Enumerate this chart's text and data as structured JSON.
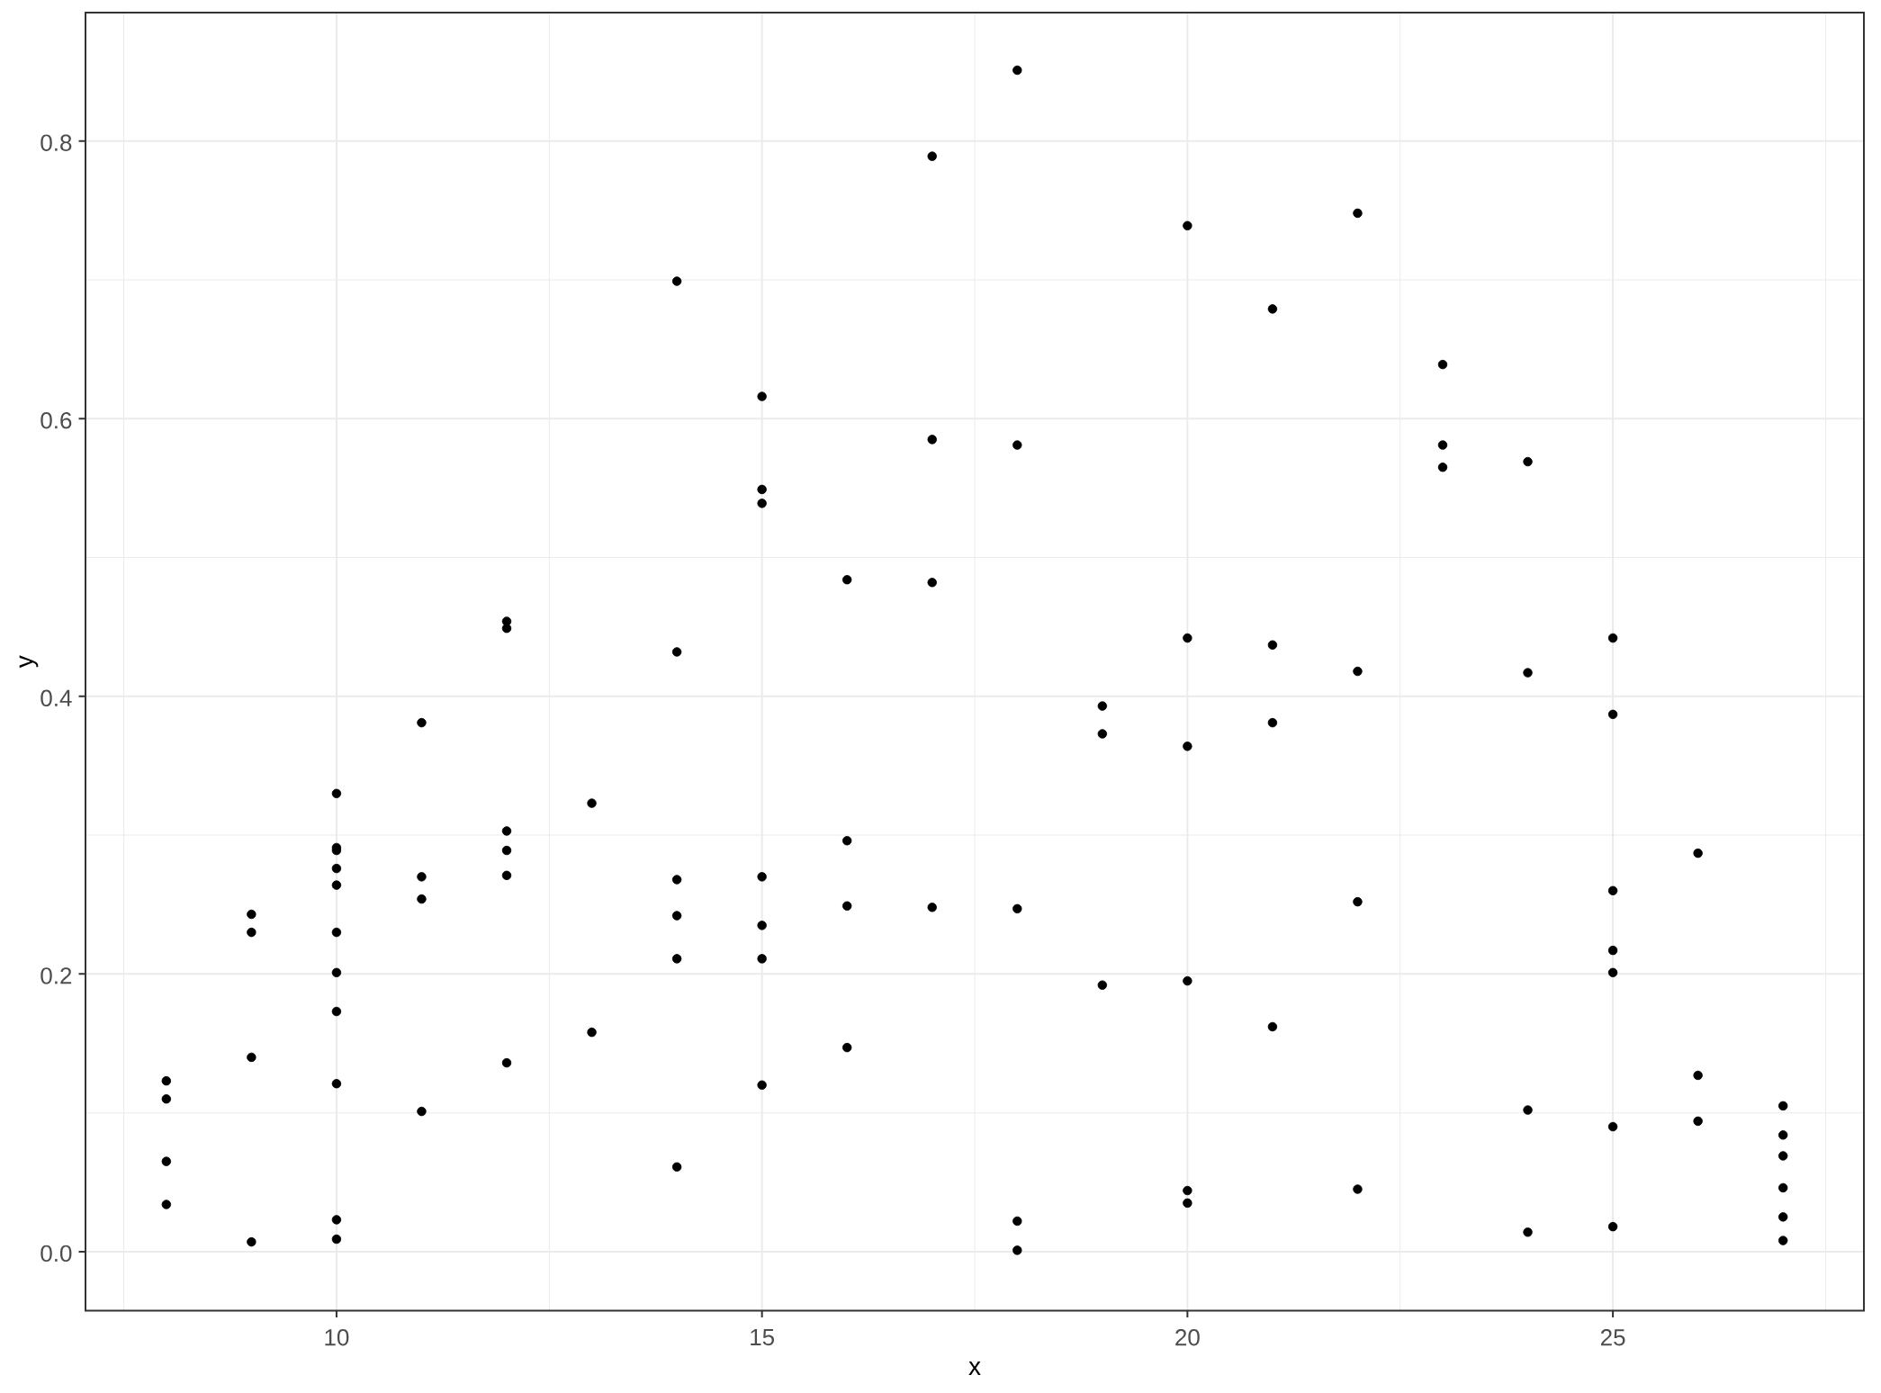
{
  "chart_data": {
    "type": "scatter",
    "xlabel": "x",
    "ylabel": "y",
    "x": [
      8,
      8,
      8,
      8,
      9,
      9,
      9,
      9,
      10,
      10,
      10,
      10,
      10,
      10,
      10,
      10,
      10,
      10,
      10,
      11,
      11,
      11,
      11,
      12,
      12,
      12,
      12,
      12,
      12,
      13,
      13,
      14,
      14,
      14,
      14,
      14,
      14,
      15,
      15,
      15,
      15,
      15,
      15,
      15,
      16,
      16,
      16,
      16,
      17,
      17,
      17,
      17,
      18,
      18,
      18,
      18,
      18,
      19,
      19,
      19,
      20,
      20,
      20,
      20,
      20,
      20,
      21,
      21,
      21,
      21,
      22,
      22,
      22,
      22,
      23,
      23,
      23,
      24,
      24,
      24,
      24,
      25,
      25,
      25,
      25,
      25,
      25,
      25,
      26,
      26,
      26,
      27,
      27,
      27,
      27,
      27,
      27
    ],
    "values": [
      0.123,
      0.11,
      0.065,
      0.034,
      0.243,
      0.23,
      0.14,
      0.007,
      0.33,
      0.291,
      0.289,
      0.276,
      0.264,
      0.23,
      0.201,
      0.173,
      0.121,
      0.023,
      0.009,
      0.381,
      0.27,
      0.254,
      0.101,
      0.454,
      0.449,
      0.303,
      0.289,
      0.271,
      0.136,
      0.323,
      0.158,
      0.699,
      0.432,
      0.268,
      0.242,
      0.211,
      0.061,
      0.616,
      0.549,
      0.539,
      0.27,
      0.235,
      0.211,
      0.12,
      0.484,
      0.296,
      0.249,
      0.147,
      0.789,
      0.585,
      0.482,
      0.248,
      0.851,
      0.581,
      0.247,
      0.022,
      0.001,
      0.393,
      0.373,
      0.192,
      0.739,
      0.442,
      0.364,
      0.195,
      0.044,
      0.035,
      0.679,
      0.437,
      0.381,
      0.162,
      0.748,
      0.418,
      0.252,
      0.045,
      0.639,
      0.581,
      0.565,
      0.569,
      0.417,
      0.102,
      0.014,
      0.442,
      0.387,
      0.26,
      0.217,
      0.201,
      0.09,
      0.018,
      0.287,
      0.127,
      0.094,
      0.105,
      0.084,
      0.069,
      0.046,
      0.025,
      0.008
    ],
    "color": "#000000",
    "marker": "circle",
    "xlim": [
      7.05,
      27.95
    ],
    "ylim": [
      -0.0425,
      0.8925
    ],
    "xticks": [
      10,
      15,
      20,
      25
    ],
    "yticks": [
      {
        "value": 0,
        "label": "0.0"
      },
      {
        "value": 0.2,
        "label": "0.2"
      },
      {
        "value": 0.4,
        "label": "0.4"
      },
      {
        "value": 0.6,
        "label": "0.6"
      },
      {
        "value": 0.8,
        "label": "0.8"
      }
    ],
    "grid": true
  }
}
